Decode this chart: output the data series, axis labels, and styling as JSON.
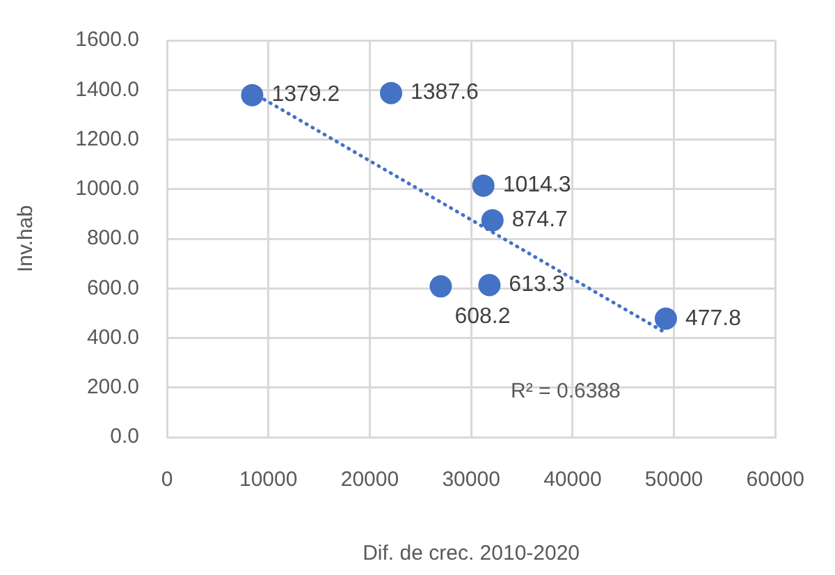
{
  "chart_data": {
    "type": "scatter",
    "xlabel": "Dif. de crec. 2010-2020",
    "ylabel": "Inv.hab",
    "xlim": [
      0,
      60000
    ],
    "xticks": [
      0,
      10000,
      20000,
      30000,
      40000,
      50000,
      60000
    ],
    "ylim": [
      0,
      1600
    ],
    "yticks": [
      {
        "value": 0,
        "label": "0.0"
      },
      {
        "value": 200,
        "label": "200.0"
      },
      {
        "value": 400,
        "label": "400.0"
      },
      {
        "value": 600,
        "label": "600.0"
      },
      {
        "value": 800,
        "label": "800.0"
      },
      {
        "value": 1000,
        "label": "1000.0"
      },
      {
        "value": 1200,
        "label": "1200.0"
      },
      {
        "value": 1400,
        "label": "1400.0"
      },
      {
        "value": 1600,
        "label": "1600.0"
      }
    ],
    "grid": true,
    "legend": false,
    "marker": "circle",
    "series": [
      {
        "color": "#4472c4",
        "x": [
          8400,
          22100,
          31200,
          32100,
          27000,
          31800,
          49200
        ],
        "values": [
          1379.2,
          1387.6,
          1014.3,
          874.7,
          608.2,
          613.3,
          477.8
        ],
        "value_labels": [
          "1379.2",
          "1387.6",
          "1014.3",
          "874.7",
          "608.2",
          "613.3",
          "477.8"
        ]
      },
      {
        "type": "line",
        "color": "#4472c4",
        "line_style": "dotted",
        "marker": "none",
        "x": [
          8400,
          49200
        ],
        "values": [
          1390,
          420
        ]
      }
    ],
    "annotations": [
      "R² = 0.6388"
    ]
  }
}
